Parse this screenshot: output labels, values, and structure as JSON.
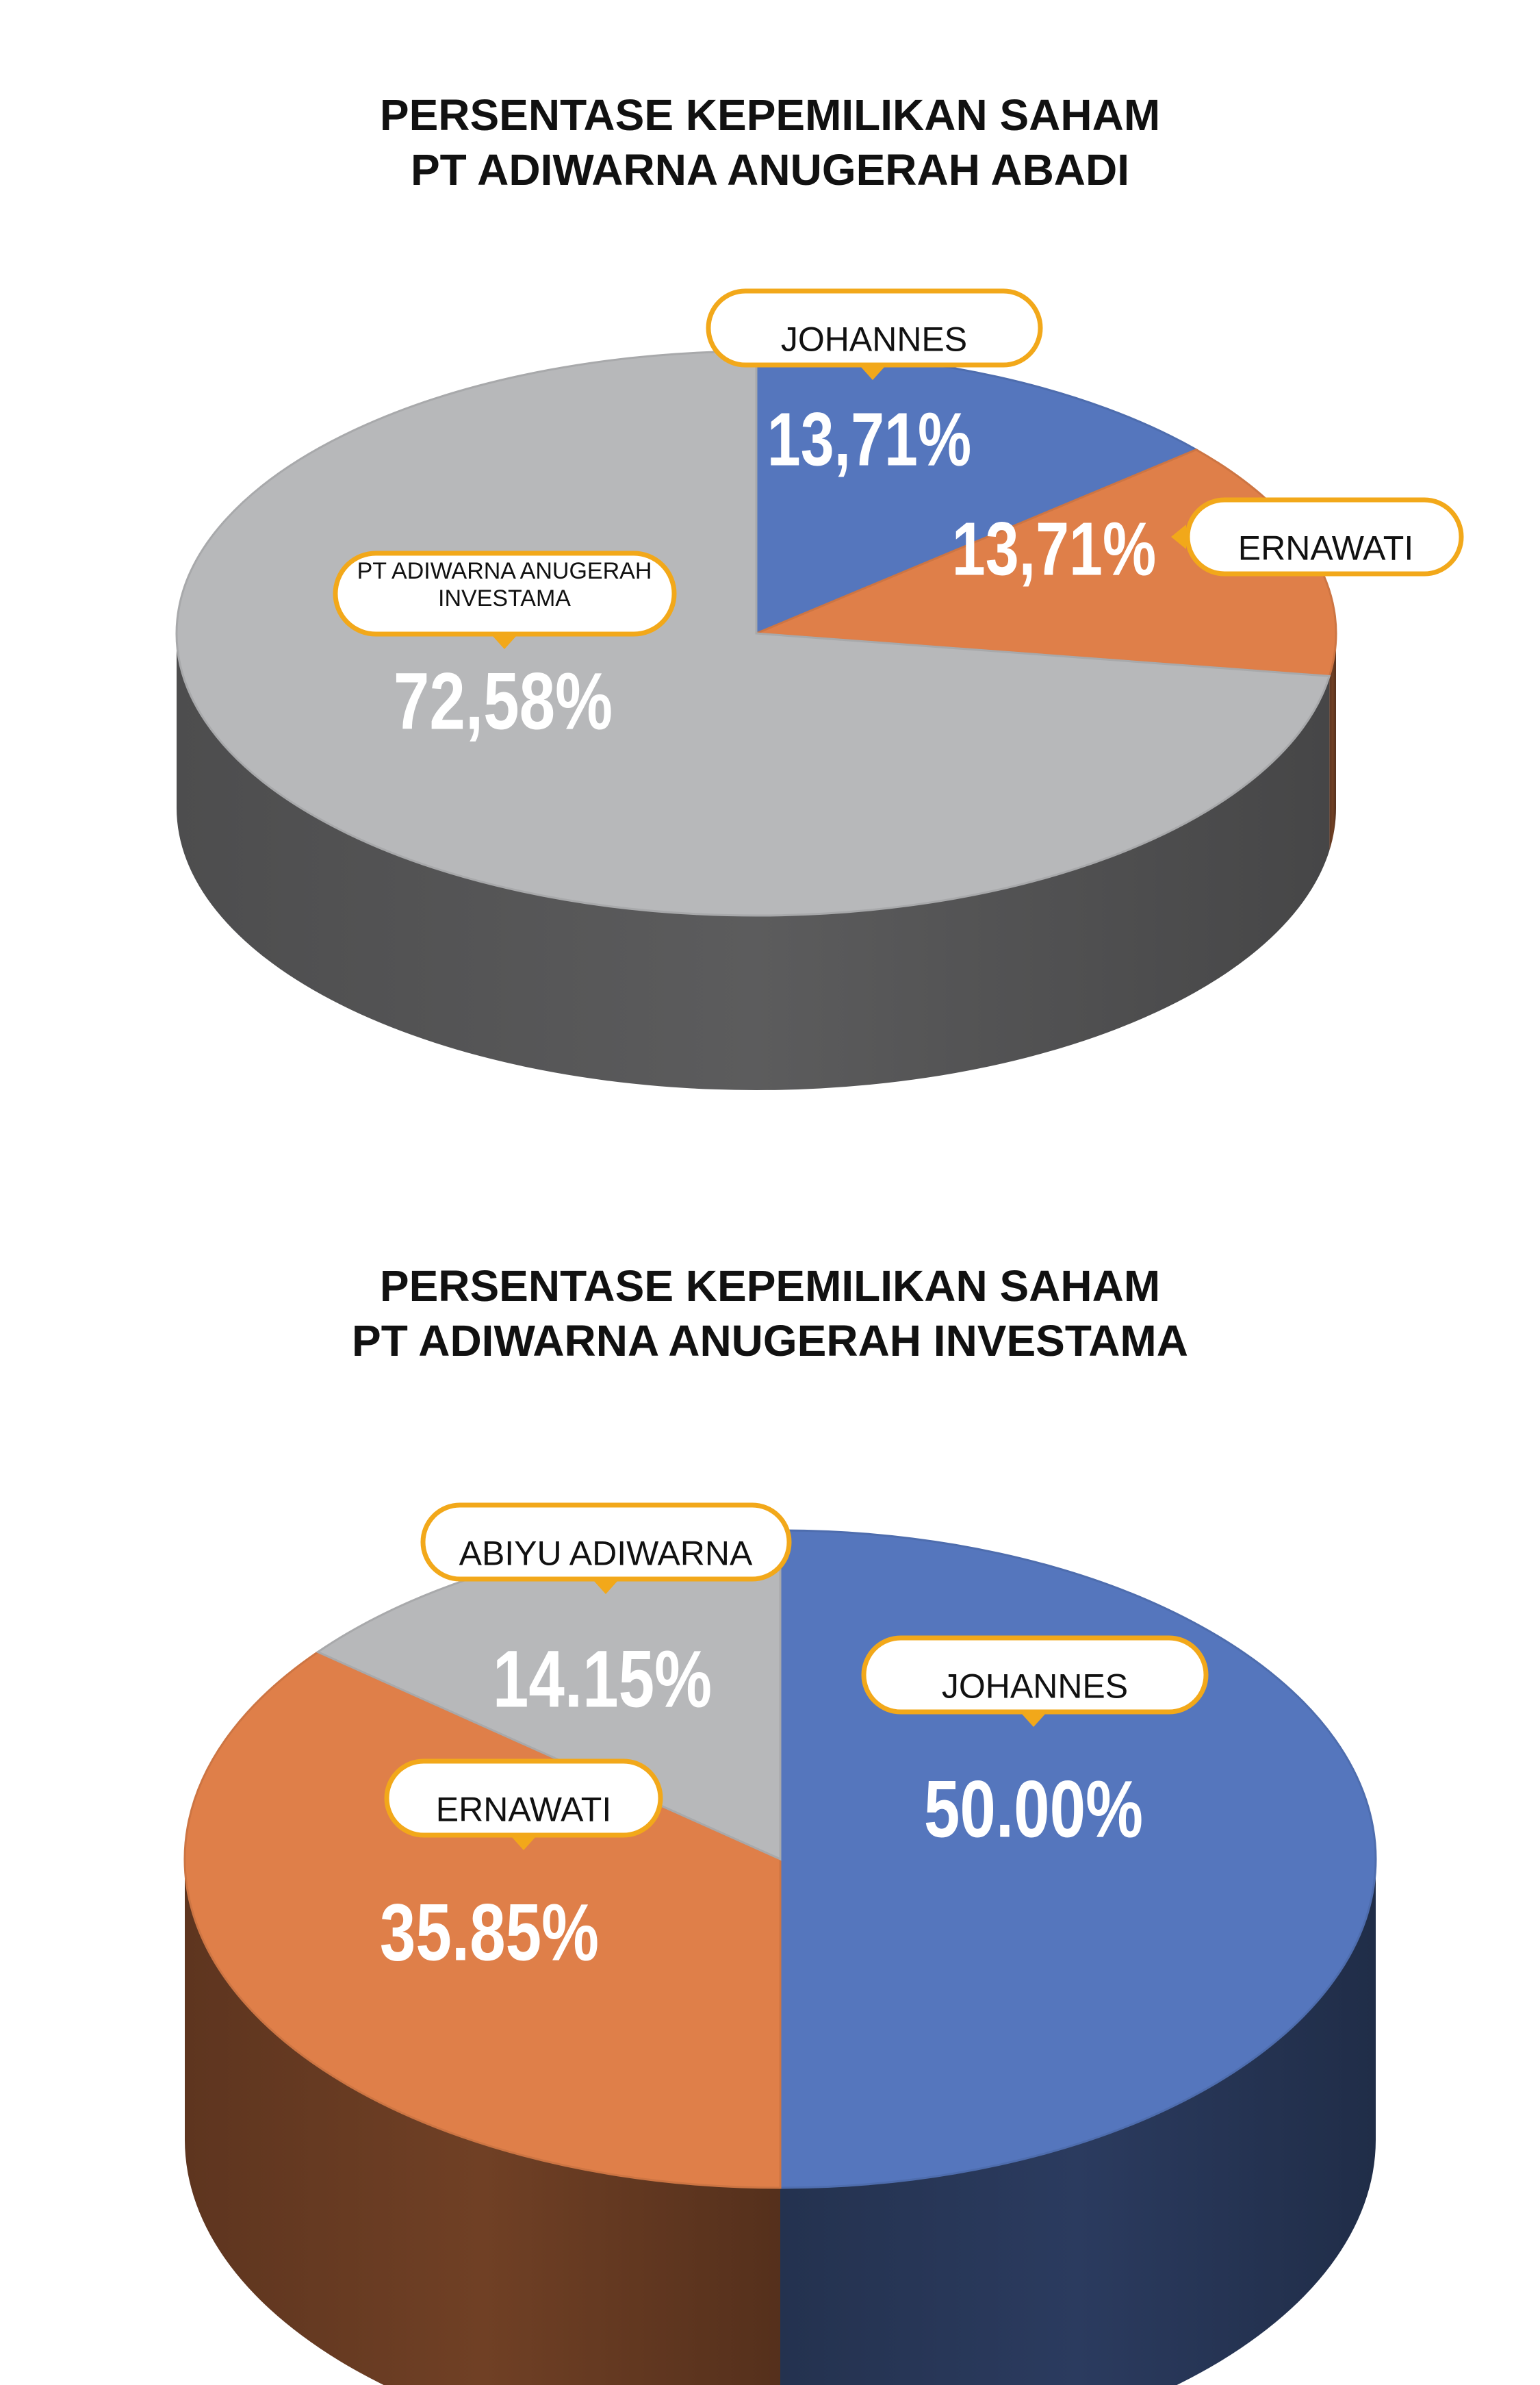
{
  "colors": {
    "blue": "#5576bd",
    "orange": "#df7f49",
    "gray": "#b7b8ba",
    "callout_border": "#f2a81a",
    "callout_fill": "#ffffff"
  },
  "chart_data": [
    {
      "type": "pie",
      "title": [
        "PERSENTASE KEPEMILIKAN SAHAM",
        "PT ADIWARNA ANUGERAH ABADI"
      ],
      "slices": [
        {
          "name": "JOHANNES",
          "value": 13.71,
          "label": "13,71%",
          "color": "blue"
        },
        {
          "name": "ERNAWATI",
          "value": 13.71,
          "label": "13,71%",
          "color": "orange"
        },
        {
          "name": "PT ADIWARNA ANUGERAH INVESTAMA",
          "name_lines": [
            "PT ADIWARNA ANUGERAH",
            "INVESTAMA"
          ],
          "value": 72.58,
          "label": "72,58%",
          "color": "gray"
        }
      ]
    },
    {
      "type": "pie",
      "title": [
        "PERSENTASE KEPEMILIKAN SAHAM",
        "PT ADIWARNA ANUGERAH INVESTAMA"
      ],
      "slices": [
        {
          "name": "JOHANNES",
          "value": 50.0,
          "label": "50.00%",
          "color": "blue"
        },
        {
          "name": "ERNAWATI",
          "value": 35.85,
          "label": "35.85%",
          "color": "orange"
        },
        {
          "name": "ABIYU ADIWARNA",
          "value": 14.15,
          "label": "14.15%",
          "color": "gray"
        }
      ]
    }
  ]
}
